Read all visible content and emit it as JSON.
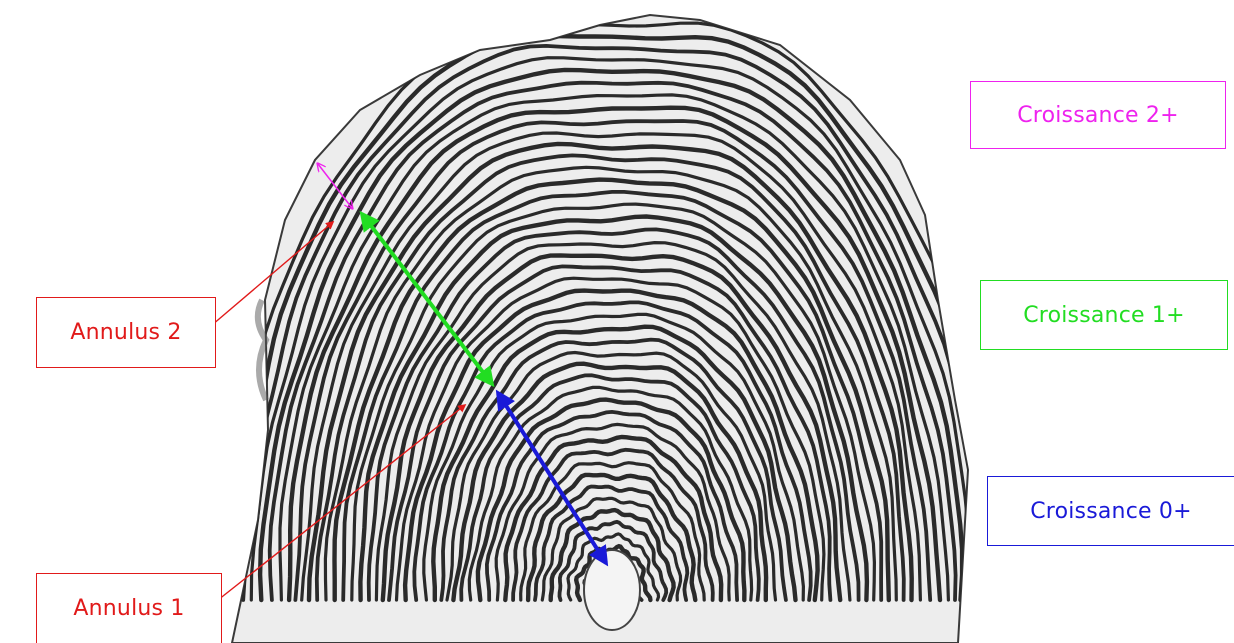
{
  "labels": {
    "growth_2": "Croissance 2+",
    "growth_1": "Croissance 1+",
    "growth_0": "Croissance 0+",
    "annulus_2": "Annulus 2",
    "annulus_1": "Annulus 1"
  },
  "colors": {
    "growth_2": "#ee22ee",
    "growth_1": "#22dd22",
    "growth_0": "#1a1ad8",
    "annulus": "#e11a1a",
    "ridge": "#2a2a2a",
    "scale_bg": "#ededed"
  },
  "image": {
    "subject": "fish scale micrograph with growth rings (circuli)",
    "icon": "scale-micrograph"
  }
}
